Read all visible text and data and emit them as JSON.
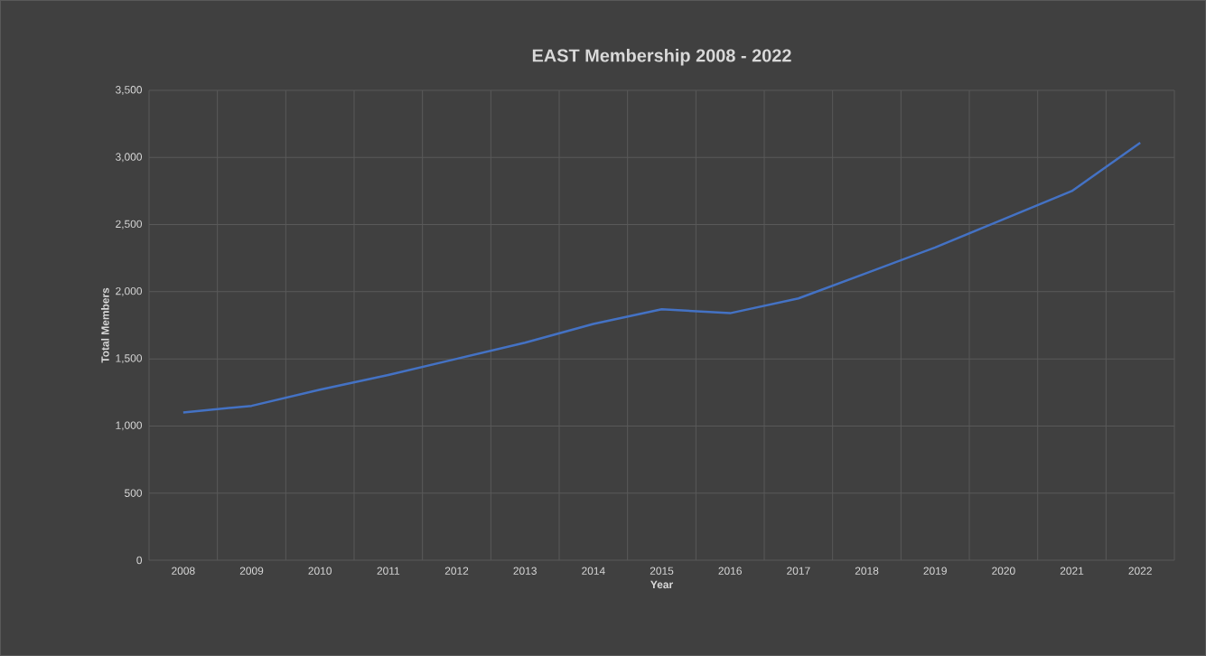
{
  "chart_data": {
    "type": "line",
    "title": "EAST Membership 2008 - 2022",
    "xlabel": "Year",
    "ylabel": "Total Members",
    "categories": [
      "2008",
      "2009",
      "2010",
      "2011",
      "2012",
      "2013",
      "2014",
      "2015",
      "2016",
      "2017",
      "2018",
      "2019",
      "2020",
      "2021",
      "2022"
    ],
    "series": [
      {
        "color": "#4472c4",
        "values": [
          1100,
          1150,
          1270,
          1380,
          1500,
          1620,
          1760,
          1870,
          1840,
          1950,
          2140,
          2330,
          2540,
          2750,
          3110
        ]
      }
    ],
    "ylim": [
      0,
      3500
    ],
    "yticks": [
      0,
      500,
      {
        "value": 1000,
        "label": "1,000"
      },
      {
        "value": 1500,
        "label": "1,500"
      },
      {
        "value": 2000,
        "label": "2,000"
      },
      {
        "value": 2500,
        "label": "2,500"
      },
      {
        "value": 3000,
        "label": "3,000"
      },
      {
        "value": 3500,
        "label": "3,500"
      }
    ],
    "grid": true,
    "line_style": "solid"
  }
}
